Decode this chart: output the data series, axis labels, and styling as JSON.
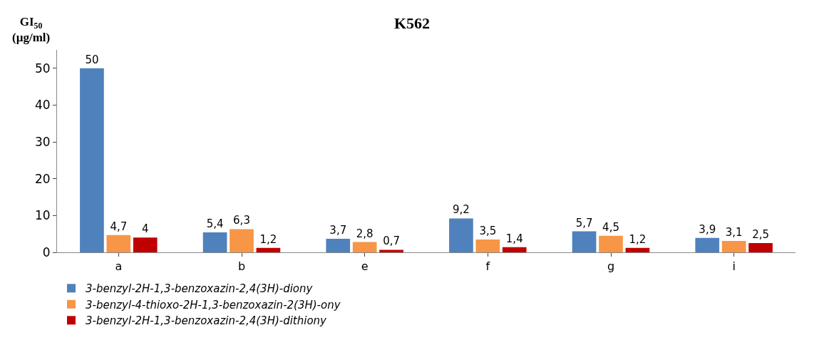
{
  "chart_data": {
    "type": "bar",
    "title": "K562",
    "ylabel": "GI$_{50}$ (µg/ml)",
    "categories": [
      "a",
      "b",
      "e",
      "f",
      "g",
      "i"
    ],
    "series": [
      {
        "name": "3-benzyl-2H-1,3-benzoxazin-2,4(3H)-diony",
        "color": "#4f81bd",
        "values": [
          50,
          5.4,
          3.7,
          9.2,
          5.7,
          3.9
        ],
        "value_labels": [
          "50",
          "5,4",
          "3,7",
          "9,2",
          "5,7",
          "3,9"
        ]
      },
      {
        "name": "3-benzyl-4-thioxo-2H-1,3-benzoxazin-2(3H)-ony",
        "color": "#f79646",
        "values": [
          4.7,
          6.3,
          2.8,
          3.5,
          4.5,
          3.1
        ],
        "value_labels": [
          "4,7",
          "6,3",
          "2,8",
          "3,5",
          "4,5",
          "3,1"
        ]
      },
      {
        "name": "3-benzyl-2H-1,3-benzoxazin-2,4(3H)-dithiony",
        "color": "#c00000",
        "values": [
          4,
          1.2,
          0.7,
          1.4,
          1.2,
          2.5
        ],
        "value_labels": [
          "4",
          "1,2",
          "0,7",
          "1,4",
          "1,2",
          "2,5"
        ]
      }
    ],
    "ylim": [
      0,
      55
    ],
    "yticks": [
      0,
      10,
      20,
      30,
      40,
      50
    ],
    "grid": false,
    "legend": "bottom"
  }
}
